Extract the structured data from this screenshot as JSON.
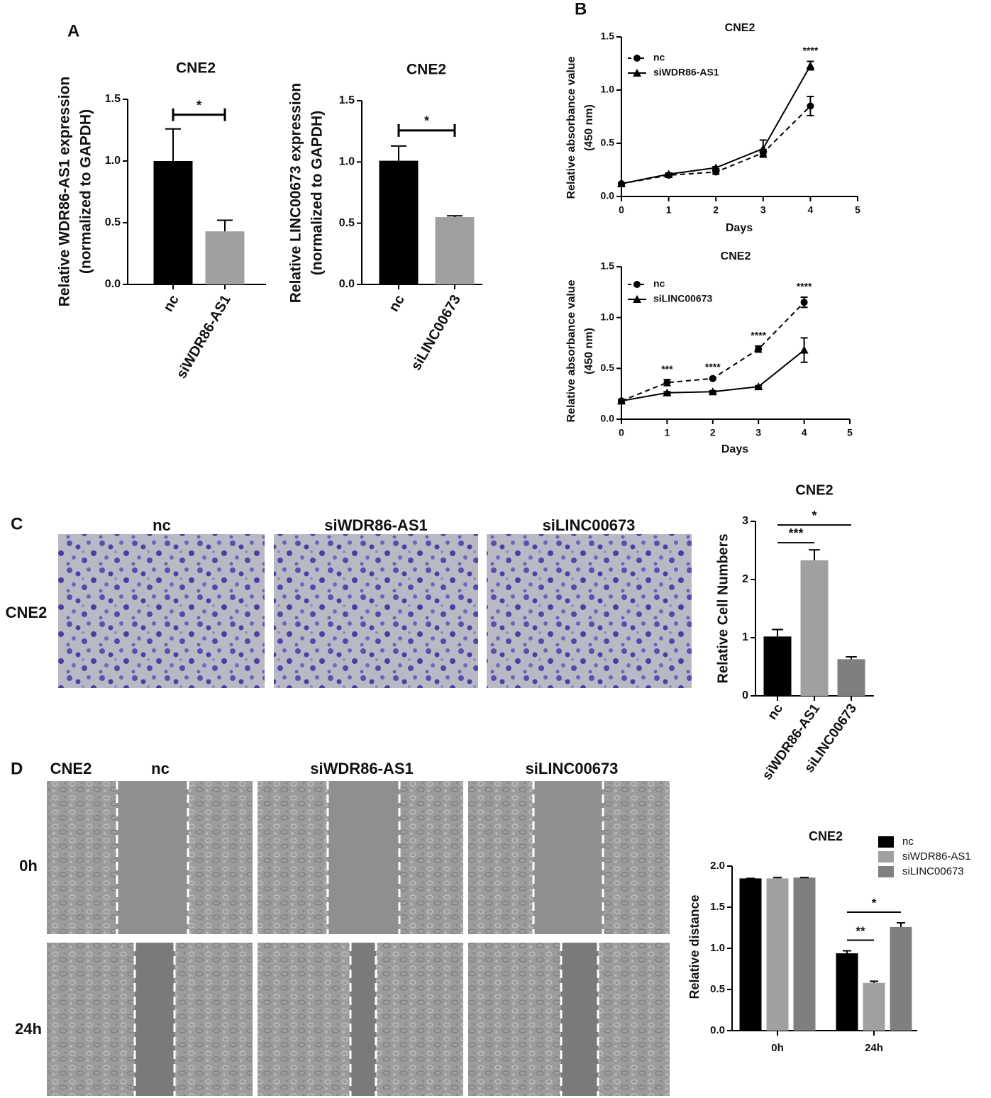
{
  "panel_labels": [
    "A",
    "B",
    "C",
    "D"
  ],
  "panel_c_images": {
    "row_label": "CNE2",
    "columns": [
      "nc",
      "siWDR86-AS1",
      "siLINC00673"
    ]
  },
  "panel_d_images": {
    "corner_label": "CNE2",
    "columns": [
      "nc",
      "siWDR86-AS1",
      "siLINC00673"
    ],
    "rows": [
      "0h",
      "24h"
    ]
  },
  "chart_data": [
    {
      "type": "bar",
      "title": "CNE2",
      "y_label": [
        "Relative WDR86-AS1 expression",
        "(normalized to GAPDH)"
      ],
      "categories": [
        "nc",
        "siWDR86-AS1"
      ],
      "values": [
        1.0,
        0.43
      ],
      "errors": [
        0.26,
        0.09
      ],
      "colors": [
        "#000000",
        "#a0a0a2"
      ],
      "ylim": [
        0,
        1.5
      ],
      "yticks": [
        {
          "value": 0,
          "label": "0.0"
        },
        {
          "value": 0.5,
          "label": "0.5"
        },
        {
          "value": 1,
          "label": "1.0"
        },
        {
          "value": 1.5,
          "label": "1.5"
        }
      ],
      "brackets": [
        {
          "label": "*",
          "between": [
            "nc",
            "siWDR86-AS1"
          ]
        }
      ]
    },
    {
      "type": "bar",
      "title": "CNE2",
      "y_label": [
        "Relative LINC00673 expression",
        "(normalized to GAPDH)"
      ],
      "categories": [
        "nc",
        "siLINC00673"
      ],
      "values": [
        1.01,
        0.55
      ],
      "errors": [
        0.12,
        0.01
      ],
      "colors": [
        "#000000",
        "#a0a0a2"
      ],
      "ylim": [
        0,
        1.5
      ],
      "yticks": [
        {
          "value": 0,
          "label": "0.0"
        },
        {
          "value": 0.5,
          "label": "0.5"
        },
        {
          "value": 1,
          "label": "1.0"
        },
        {
          "value": 1.5,
          "label": "1.5"
        }
      ],
      "brackets": [
        {
          "label": "*",
          "between": [
            "nc",
            "siLINC00673"
          ]
        }
      ]
    },
    {
      "type": "line",
      "title": "CNE2",
      "x_label": "Days",
      "y_label": [
        "Relative absorbance value",
        "(450 nm)"
      ],
      "x": [
        0,
        1,
        2,
        3,
        4
      ],
      "series": [
        {
          "name": "nc",
          "color": "#000000",
          "line_style": "dashed",
          "marker": "circle",
          "values": [
            0.12,
            0.2,
            0.23,
            0.41,
            0.85
          ],
          "errors": [
            0.01,
            0.02,
            0.02,
            0.03,
            0.09
          ]
        },
        {
          "name": "siWDR86-AS1",
          "color": "#000000",
          "line_style": "solid",
          "marker": "triangle",
          "values": [
            0.12,
            0.21,
            0.27,
            0.45,
            1.23
          ],
          "errors": [
            0.01,
            0.01,
            0.01,
            0.08,
            0.04
          ]
        }
      ],
      "xlim": [
        0,
        5
      ],
      "xticks": [
        0,
        1,
        2,
        3,
        4,
        5
      ],
      "ylim": [
        0,
        1.5
      ],
      "yticks": [
        {
          "value": 0,
          "label": "0.0"
        },
        {
          "value": 0.5,
          "label": "0.5"
        },
        {
          "value": 1,
          "label": "1.0"
        },
        {
          "value": 1.5,
          "label": "1.5"
        }
      ],
      "annotations": [
        {
          "text": "****",
          "x": 4
        }
      ]
    },
    {
      "type": "line",
      "title": "CNE2",
      "x_label": "Days",
      "y_label": [
        "Relative absorbance value",
        "(450 nm)"
      ],
      "x": [
        0,
        1,
        2,
        3,
        4
      ],
      "series": [
        {
          "name": "nc",
          "color": "#000000",
          "line_style": "dashed",
          "marker": "circle",
          "values": [
            0.18,
            0.36,
            0.4,
            0.69,
            1.15
          ],
          "errors": [
            0.01,
            0.03,
            0.01,
            0.03,
            0.05
          ]
        },
        {
          "name": "siLINC00673",
          "color": "#000000",
          "line_style": "solid",
          "marker": "triangle",
          "values": [
            0.18,
            0.26,
            0.27,
            0.32,
            0.68
          ],
          "errors": [
            0.01,
            0.01,
            0.01,
            0.01,
            0.12
          ]
        }
      ],
      "xlim": [
        0,
        5
      ],
      "xticks": [
        0,
        1,
        2,
        3,
        4,
        5
      ],
      "ylim": [
        0,
        1.5
      ],
      "yticks": [
        {
          "value": 0,
          "label": "0.0"
        },
        {
          "value": 0.5,
          "label": "0.5"
        },
        {
          "value": 1,
          "label": "1.0"
        },
        {
          "value": 1.5,
          "label": "1.5"
        }
      ],
      "annotations": [
        {
          "text": "***",
          "x": 1
        },
        {
          "text": "****",
          "x": 2
        },
        {
          "text": "****",
          "x": 3
        },
        {
          "text": "****",
          "x": 4
        }
      ]
    },
    {
      "type": "bar",
      "title": "CNE2",
      "y_label": [
        "Relative Cell Numbers"
      ],
      "categories": [
        "nc",
        "siWDR86-AS1",
        "siLINC00673"
      ],
      "values": [
        1.02,
        2.33,
        0.63
      ],
      "errors": [
        0.12,
        0.18,
        0.04
      ],
      "colors": [
        "#000000",
        "#a0a0a2",
        "#7f7f7f"
      ],
      "ylim": [
        0,
        3
      ],
      "yticks": [
        0,
        1,
        2,
        3
      ],
      "brackets": [
        {
          "label": "***",
          "between": [
            "nc",
            "siWDR86-AS1"
          ]
        },
        {
          "label": "*",
          "between": [
            "nc",
            "siLINC00673"
          ]
        }
      ]
    },
    {
      "type": "grouped_bar",
      "title": "CNE2",
      "y_label": [
        "Relative distance"
      ],
      "categories": [
        "0h",
        "24h"
      ],
      "series": [
        {
          "name": "nc",
          "color": "#000000",
          "values": [
            1.85,
            0.94
          ],
          "errors": [
            0.0,
            0.03
          ]
        },
        {
          "name": "siWDR86-AS1",
          "color": "#a0a0a2",
          "values": [
            1.85,
            0.58
          ],
          "errors": [
            0.01,
            0.02
          ]
        },
        {
          "name": "siLINC00673",
          "color": "#7f7f7f",
          "values": [
            1.86,
            1.26
          ],
          "errors": [
            0.0,
            0.05
          ]
        }
      ],
      "ylim": [
        0,
        2
      ],
      "yticks": [
        {
          "value": 0,
          "label": "0.0"
        },
        {
          "value": 0.5,
          "label": "0.5"
        },
        {
          "value": 1,
          "label": "1.0"
        },
        {
          "value": 1.5,
          "label": "1.5"
        },
        {
          "value": 2,
          "label": "2.0"
        }
      ],
      "legend": "top-right",
      "brackets": [
        {
          "label": "**",
          "category": "24h",
          "between": [
            "nc",
            "siWDR86-AS1"
          ]
        },
        {
          "label": "*",
          "category": "24h",
          "between": [
            "nc",
            "siLINC00673"
          ]
        }
      ]
    }
  ]
}
